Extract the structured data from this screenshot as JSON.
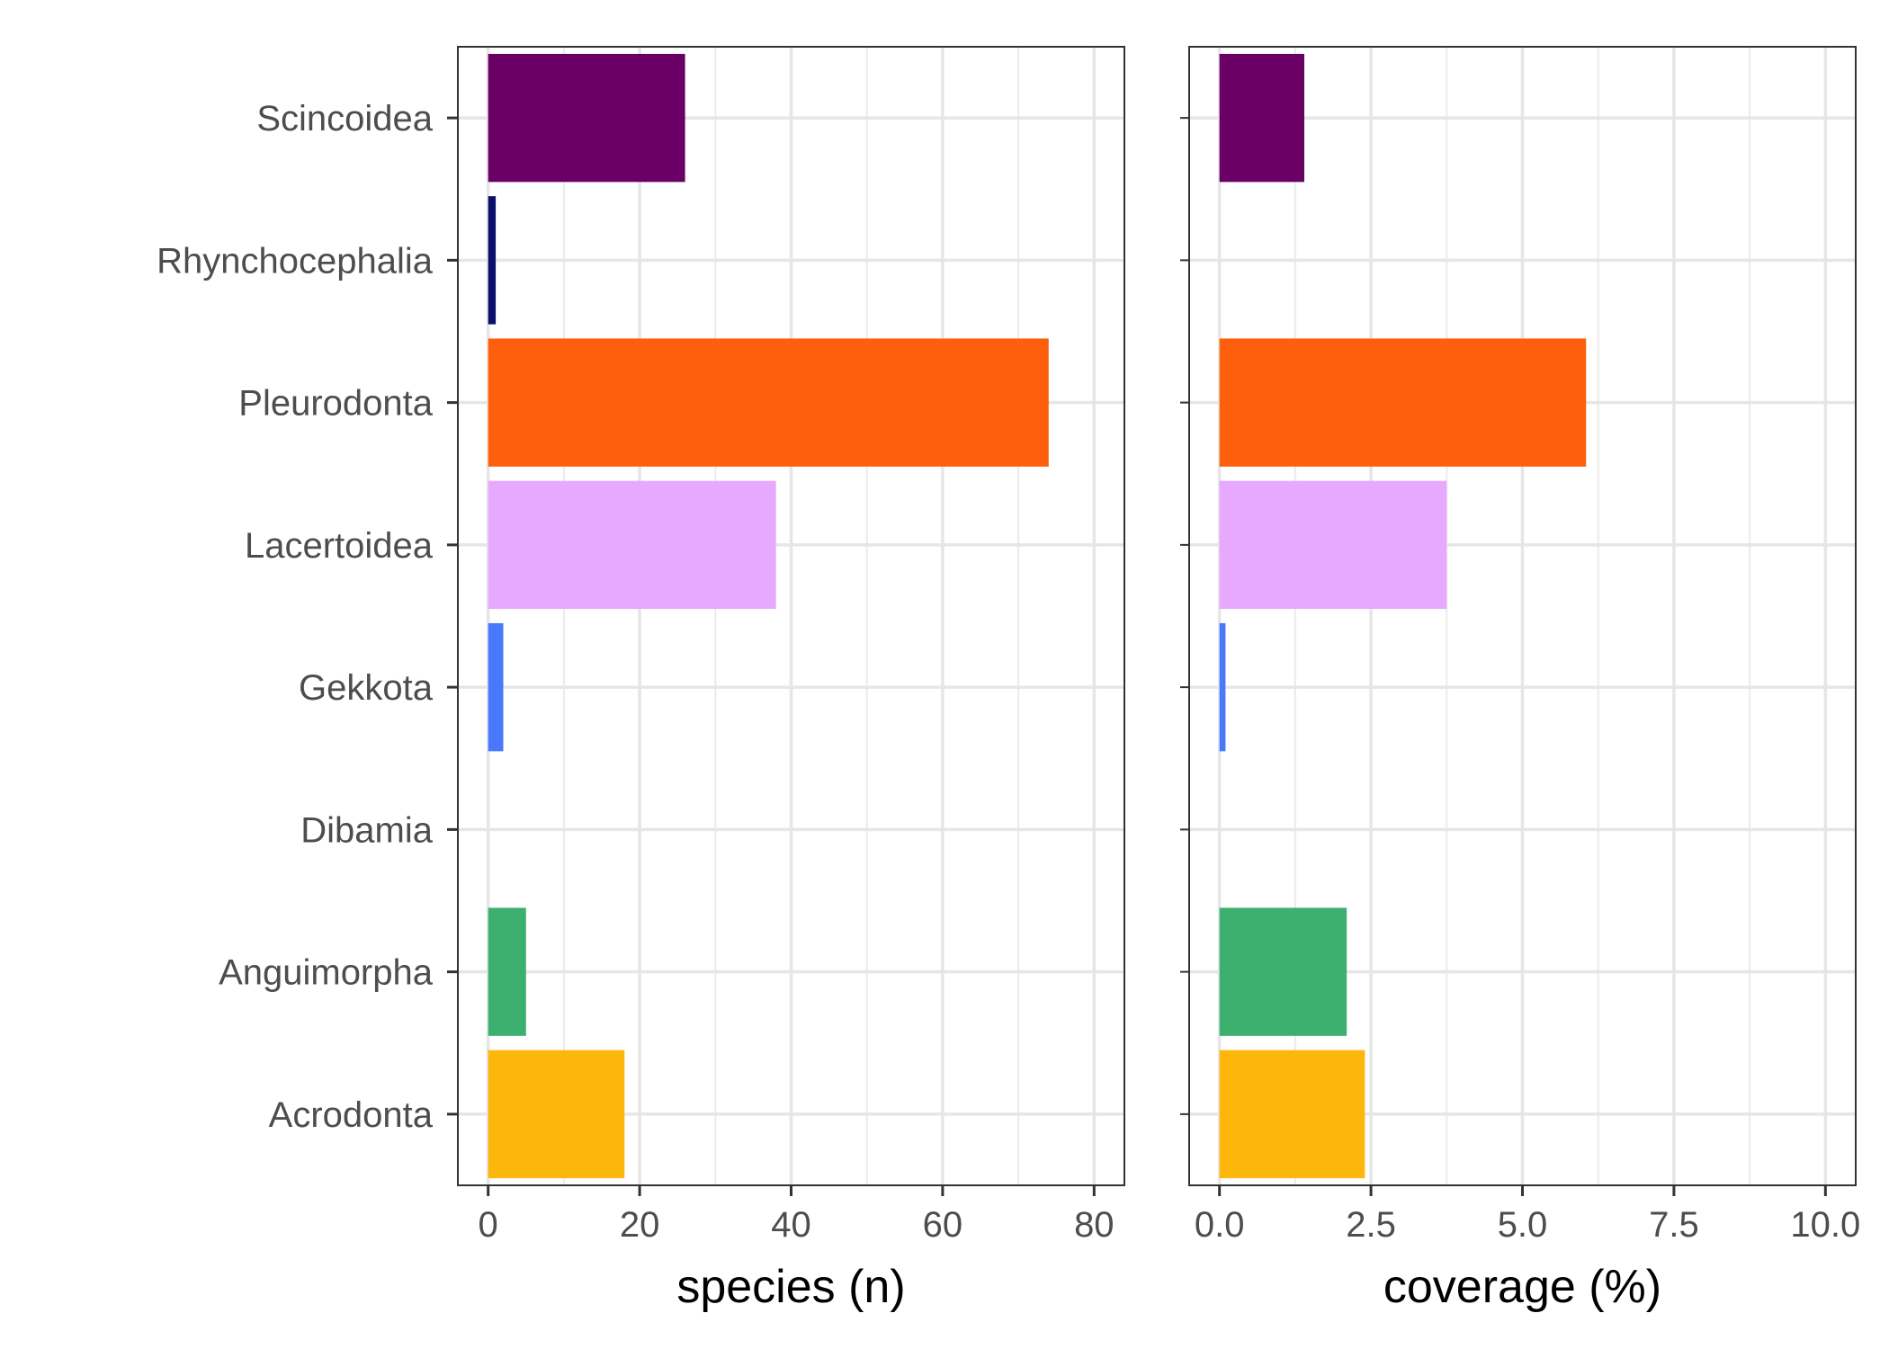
{
  "chart_data": {
    "type": "bar",
    "orientation": "horizontal",
    "categories": [
      "Scincoidea",
      "Rhynchocephalia",
      "Pleurodonta",
      "Lacertoidea",
      "Gekkota",
      "Dibamia",
      "Anguimorpha",
      "Acrodonta"
    ],
    "colors": [
      "#6a0066",
      "#0c0f6b",
      "#fd5f0c",
      "#e7a9fd",
      "#4978fb",
      "#999999",
      "#3daf6e",
      "#fdb60b"
    ],
    "grid": true,
    "panels": [
      {
        "xlabel": "species (n)",
        "xlim": [
          -4,
          84
        ],
        "ticks": [
          0,
          20,
          40,
          60,
          80
        ],
        "tick_labels": [
          "0",
          "20",
          "40",
          "60",
          "80"
        ],
        "values": [
          26,
          1,
          74,
          38,
          2,
          0,
          5,
          18
        ]
      },
      {
        "xlabel": "coverage (%)",
        "xlim": [
          -0.5,
          10.5
        ],
        "ticks": [
          0,
          2.5,
          5,
          7.5,
          10
        ],
        "tick_labels": [
          "0.0",
          "2.5",
          "5.0",
          "7.5",
          "10.0"
        ],
        "values": [
          1.4,
          0,
          6.05,
          3.75,
          0.1,
          0,
          2.1,
          2.4
        ]
      }
    ]
  }
}
